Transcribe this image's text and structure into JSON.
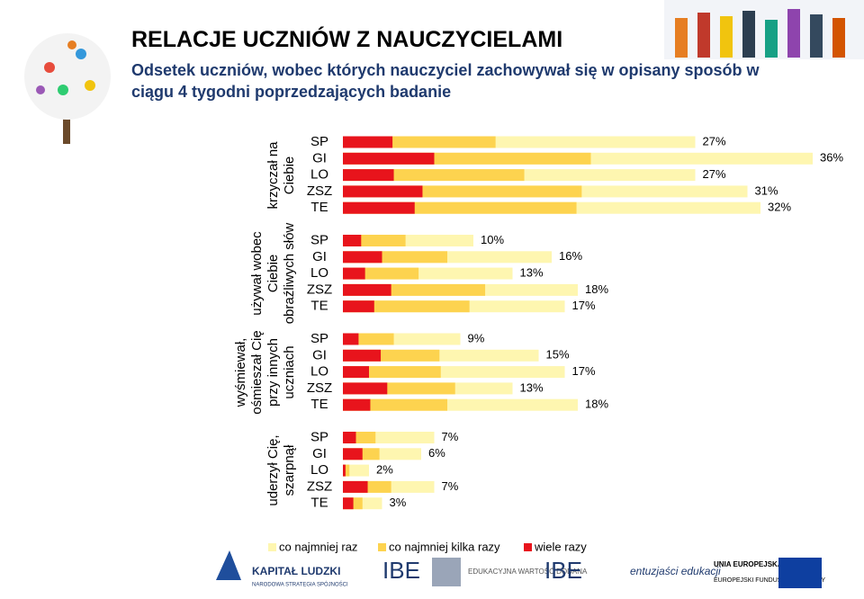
{
  "chart_data": {
    "type": "overlap-bar",
    "title": "RELACJE UCZNIÓW Z NAUCZYCIELAMI",
    "subtitle": "Odsetek uczniów, wobec których nauczyciel zachowywał się w opisany sposób w ciągu 4 tygodni poprzedzających badanie",
    "groups": [
      "krzyczał na Ciebie",
      "używał wobec Ciebie obraźliwych słów",
      "wyśmiewał, ośmieszał Cię przy innych uczniach",
      "uderzył Cię, szarpnął"
    ],
    "categories": [
      "SP",
      "GI",
      "LO",
      "ZSZ",
      "TE",
      "SP",
      "GI",
      "LO",
      "ZSZ",
      "TE",
      "SP",
      "GI",
      "LO",
      "ZSZ",
      "TE",
      "SP",
      "GI",
      "LO",
      "ZSZ",
      "TE"
    ],
    "series": [
      {
        "name": "co najmniej raz",
        "color": "#fef6b0",
        "values": [
          27,
          36,
          27,
          31,
          32,
          10,
          16,
          13,
          18,
          17,
          9,
          15,
          17,
          13,
          18,
          7,
          6,
          2,
          7,
          3
        ],
        "value_labels": [
          "27%",
          "36%",
          "27%",
          "31%",
          "32%",
          "10%",
          "16%",
          "13%",
          "18%",
          "17%",
          "9%",
          "15%",
          "17%",
          "13%",
          "18%",
          "7%",
          "6%",
          "2%",
          "7%",
          "3%"
        ]
      },
      {
        "name": "co najmniej kilka razy",
        "color": "#fdd34f",
        "values": [
          11.7,
          19,
          13.9,
          18.3,
          17.9,
          4.8,
          8,
          5.8,
          10.9,
          9.7,
          3.9,
          7.4,
          7.5,
          8.6,
          8,
          2.5,
          2.8,
          0.5,
          3.7,
          1.5
        ]
      },
      {
        "name": "wiele razy",
        "color": "#e8141c",
        "values": [
          3.8,
          7,
          3.9,
          6.1,
          5.5,
          1.4,
          3,
          1.7,
          3.7,
          2.4,
          1.2,
          2.9,
          2,
          3.4,
          2.1,
          1,
          1.5,
          0.2,
          1.9,
          0.8
        ]
      }
    ]
  },
  "footer": {
    "kl": "KAPITAŁ LUDZKI",
    "kl_sub": "NARODOWA STRATEGIA SPÓJNOŚCI",
    "ibe1": "IBE",
    "ewd": "EDUKACYJNA WARTOŚĆ DODANA",
    "ibe2": "IBE",
    "ent": "entuzjaści edukacji",
    "ue": "UNIA EUROPEJSKA",
    "ue_sub": "EUROPEJSKI FUNDUSZ SPOŁECZNY"
  }
}
